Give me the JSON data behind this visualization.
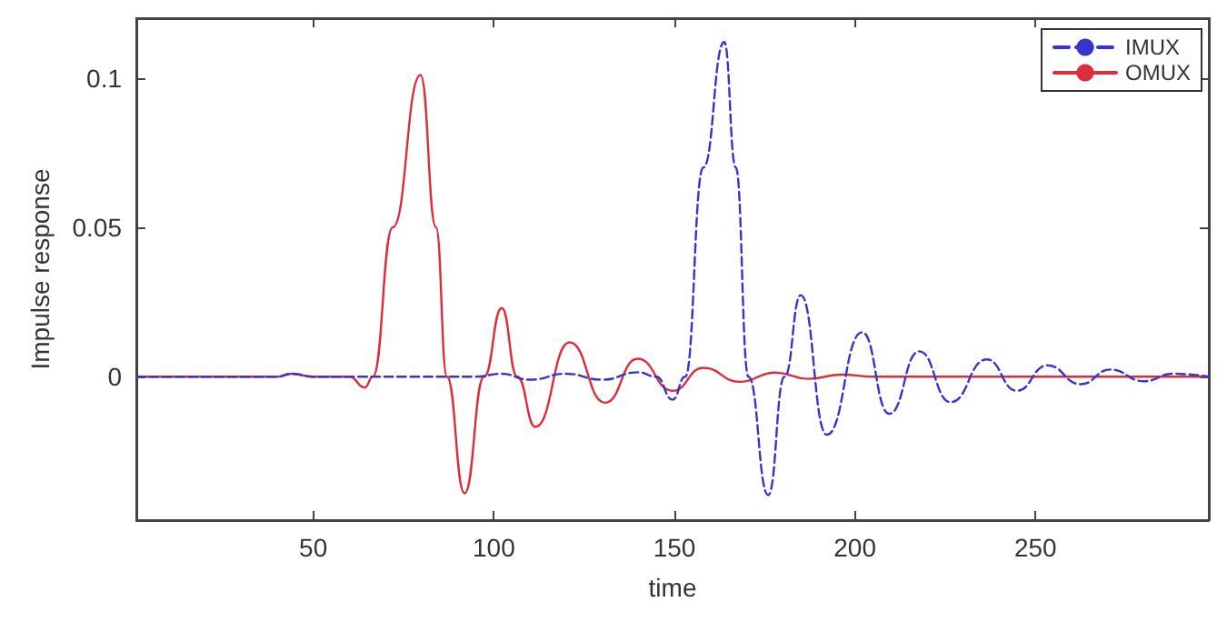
{
  "chart_data": {
    "type": "line",
    "xlabel": "time",
    "ylabel": "Impulse response",
    "xlim": [
      1,
      298
    ],
    "ylim": [
      -0.048,
      0.12
    ],
    "xticks": [
      50,
      100,
      150,
      200,
      250
    ],
    "yticks": [
      0,
      0.05,
      0.1
    ],
    "grid": false,
    "legend": "top right",
    "marker": "none",
    "series": [
      {
        "name": "IMUX",
        "color": "#3535cc",
        "line_style": "dashed",
        "x": [
          1,
          40,
          44,
          50,
          60,
          80,
          95,
          102,
          110,
          120,
          130,
          140,
          145,
          149.5,
          153,
          158,
          163.8,
          167,
          170.5,
          176,
          180.5,
          185,
          192.2,
          202,
          209.5,
          217.8,
          226.5,
          236.5,
          244.8,
          253.3,
          262.5,
          270.7,
          280,
          288,
          298
        ],
        "values": [
          0,
          0,
          0.001,
          0,
          0,
          0,
          0,
          0.001,
          -0.001,
          0.001,
          -0.001,
          0.0015,
          0,
          -0.0077,
          0,
          0.07,
          0.112,
          0.07,
          0,
          -0.0396,
          0,
          0.0273,
          -0.0194,
          0.0149,
          -0.0124,
          0.0085,
          -0.0085,
          0.0058,
          -0.0047,
          0.0038,
          -0.0025,
          0.0024,
          -0.0015,
          0.001,
          0
        ]
      },
      {
        "name": "OMUX",
        "color": "#dd2c3a",
        "line_style": "solid",
        "x": [
          1,
          40,
          44,
          50,
          60,
          64.3,
          66.5,
          72,
          79.7,
          84,
          87,
          91.9,
          97.3,
          102.2,
          106.5,
          111.5,
          121,
          130.8,
          139.8,
          149.5,
          158,
          168,
          178,
          187,
          196.5,
          205,
          298
        ],
        "values": [
          0,
          0,
          0.001,
          0,
          0,
          -0.0036,
          0,
          0.05,
          0.101,
          0.05,
          0,
          -0.039,
          0,
          0.023,
          0,
          -0.0168,
          0.0115,
          -0.0087,
          0.006,
          -0.0047,
          0.003,
          -0.0017,
          0.0014,
          -0.0007,
          0.0007,
          0,
          0
        ]
      }
    ]
  }
}
